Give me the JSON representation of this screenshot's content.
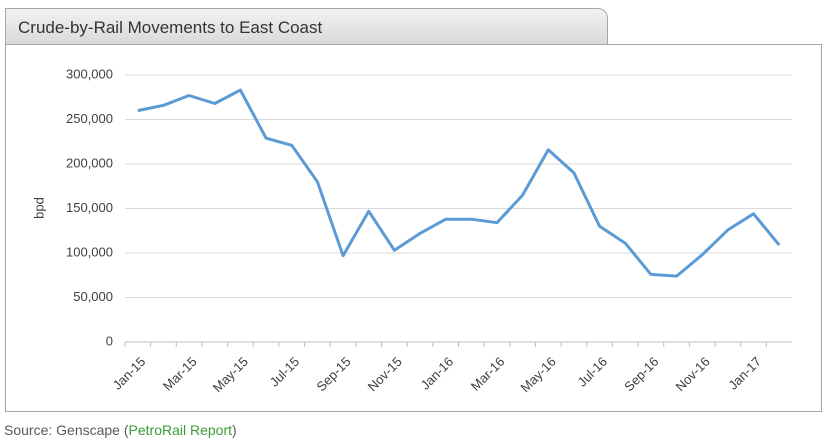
{
  "chart_data": {
    "type": "line",
    "title": "Crude-by-Rail Movements to East Coast",
    "ylabel": "bpd",
    "categories": [
      "Jan-15",
      null,
      "Mar-15",
      null,
      "May-15",
      null,
      "Jul-15",
      null,
      "Sep-15",
      null,
      "Nov-15",
      null,
      "Jan-16",
      null,
      "Mar-16",
      null,
      "May-16",
      null,
      "Jul-16",
      null,
      "Sep-16",
      null,
      "Nov-16",
      null,
      "Jan-17",
      null
    ],
    "values": [
      260000,
      266000,
      277000,
      268000,
      283000,
      229000,
      221000,
      180000,
      97000,
      147000,
      103000,
      122000,
      138000,
      138000,
      134000,
      165000,
      216000,
      190000,
      130000,
      111000,
      76000,
      74000,
      98000,
      126000,
      144000,
      109000
    ],
    "color": "#5b9bd5",
    "ylim": [
      0,
      300000
    ],
    "yticks": [
      0,
      {
        "value": 50000,
        "label": "50,000"
      },
      {
        "value": 100000,
        "label": "100,000"
      },
      {
        "value": 150000,
        "label": "150,000"
      },
      {
        "value": 200000,
        "label": "200,000"
      },
      {
        "value": 250000,
        "label": "250,000"
      },
      {
        "value": 300000,
        "label": "300,000"
      }
    ],
    "grid": true
  },
  "source": {
    "prefix": "Source: Genscape (",
    "link": "PetroRail Report",
    "suffix": ")"
  }
}
